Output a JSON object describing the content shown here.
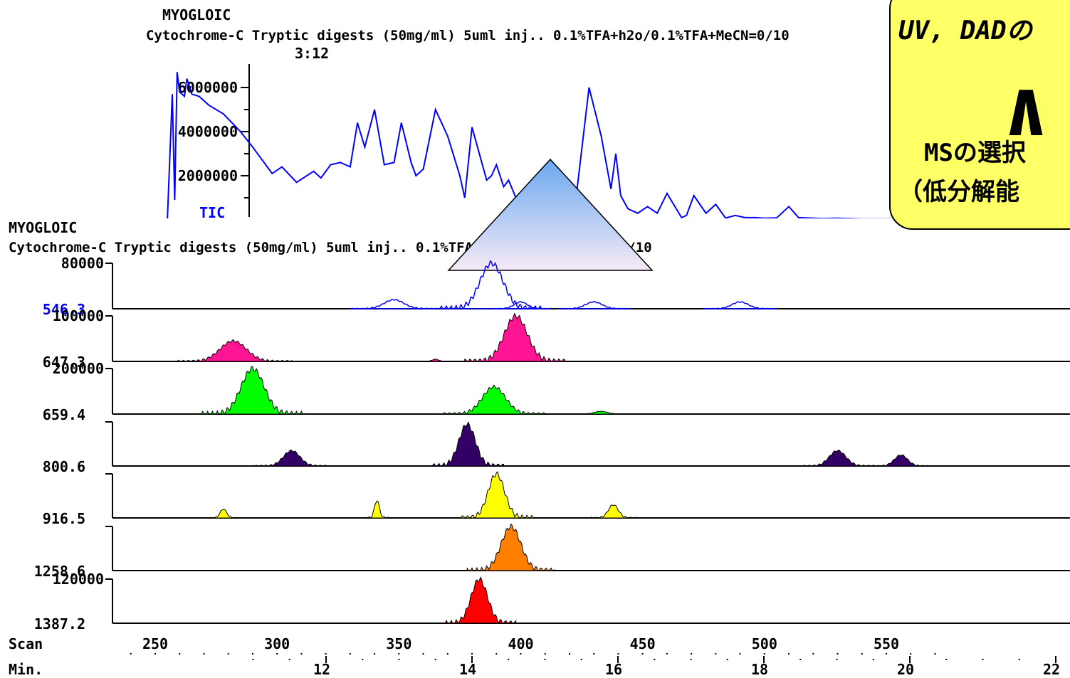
{
  "top_panel": {
    "label": "MYOGLOIC",
    "subtitle": "Cytochrome-C Tryptic digests (50mg/ml) 5uml inj.. 0.1%TFA+h2o/0.1%TFA+MeCN=0/10",
    "peak_annotation": "3:12",
    "trace_label": "TIC"
  },
  "bottom_panel": {
    "label": "MYOGLOIC",
    "subtitle": "Cytochrome-C Tryptic digests (50mg/ml) 5uml inj.. 0.1%TFA+h2o/0.1%TFA+MeCN=0/10"
  },
  "callout": {
    "line1": "UV, DADの",
    "symbol": "∧",
    "line2": "MSの選択",
    "line3": "（低分解能"
  },
  "axis": {
    "scan_label": "Scan",
    "min_label": "Min.",
    "scan_ticks": [
      "250",
      "300",
      "350",
      "400",
      "450",
      "500",
      "550"
    ],
    "min_ticks": [
      "12",
      "14",
      "16",
      "18",
      "20",
      "22"
    ]
  },
  "chart_data": [
    {
      "type": "line",
      "title": "MYOGLOIC",
      "series": [
        {
          "name": "TIC",
          "color": "#0000ff",
          "x": [
            240,
            255,
            257,
            258,
            259,
            260,
            262,
            263,
            265,
            268,
            272,
            278,
            285,
            290,
            298,
            302,
            308,
            315,
            318,
            322,
            326,
            330,
            333,
            336,
            340,
            344,
            348,
            351,
            355,
            357,
            360,
            365,
            370,
            375,
            377,
            380,
            386,
            388,
            390,
            393,
            395,
            398,
            400,
            404,
            408,
            412,
            418,
            422,
            428,
            433,
            437,
            439,
            441,
            444,
            448,
            452,
            456,
            460,
            466,
            468,
            471,
            476,
            480,
            484,
            488,
            492,
            496,
            500,
            505,
            510,
            514,
            518,
            524,
            530,
            540,
            548,
            552,
            556,
            565,
            580
          ],
          "y": [
            0,
            0,
            5700000,
            900000,
            6700000,
            5800000,
            5600000,
            6400000,
            5700000,
            5600000,
            5200000,
            4800000,
            4000000,
            3300000,
            2100000,
            2400000,
            1700000,
            2200000,
            1900000,
            2500000,
            2600000,
            2400000,
            4400000,
            3300000,
            5000000,
            2500000,
            2600000,
            4400000,
            2600000,
            2000000,
            2300000,
            5000000,
            3800000,
            2000000,
            1000000,
            4200000,
            1800000,
            2000000,
            2500000,
            1500000,
            1800000,
            1000000,
            800000,
            900000,
            1500000,
            300000,
            500000,
            350000,
            6000000,
            3800000,
            1400000,
            3000000,
            1100000,
            500000,
            300000,
            600000,
            300000,
            1200000,
            100000,
            200000,
            1100000,
            300000,
            700000,
            80000,
            200000,
            100000,
            100000,
            70000,
            90000,
            600000,
            100000,
            80000,
            60000,
            70000,
            40000,
            40000,
            40000,
            40000,
            40000,
            40000
          ]
        }
      ],
      "yticks": [
        "6000000",
        "4000000",
        "2000000"
      ],
      "ylim": [
        0,
        7000000
      ]
    },
    {
      "type": "area",
      "x_axis": {
        "label": "Scan",
        "ticks": [
          250,
          300,
          350,
          400,
          450,
          500,
          550
        ]
      },
      "x2_axis": {
        "label": "Min.",
        "ticks": [
          12,
          14,
          16,
          18,
          20,
          22
        ]
      },
      "traces": [
        {
          "mz": "546.3",
          "scale": "80000",
          "color": "#0000ff",
          "fill": false,
          "peaks": [
            [
              348,
              0.2,
              6
            ],
            [
              388,
              1.0,
              7
            ],
            [
              400,
              0.15,
              4
            ],
            [
              430,
              0.15,
              5
            ],
            [
              490,
              0.15,
              5
            ]
          ]
        },
        {
          "mz": "647.3",
          "scale": "100000",
          "color": "#ff1493",
          "fill": true,
          "peaks": [
            [
              282,
              0.45,
              8
            ],
            [
              398,
              1.0,
              7
            ],
            [
              365,
              0.05,
              2
            ]
          ]
        },
        {
          "mz": "659.4",
          "scale": "200000",
          "color": "#00ff00",
          "fill": true,
          "peaks": [
            [
              290,
              1.0,
              7
            ],
            [
              389,
              0.6,
              7
            ],
            [
              433,
              0.06,
              4
            ]
          ]
        },
        {
          "mz": "800.6",
          "scale": "",
          "color": "#330066",
          "fill": true,
          "peaks": [
            [
              306,
              0.35,
              5
            ],
            [
              378,
              0.95,
              5
            ],
            [
              530,
              0.35,
              5
            ],
            [
              556,
              0.25,
              4
            ]
          ]
        },
        {
          "mz": "916.5",
          "scale": "",
          "color": "#ffff00",
          "fill": true,
          "peaks": [
            [
              390,
              1.0,
              5
            ],
            [
              341,
              0.4,
              1.5
            ],
            [
              438,
              0.3,
              3
            ],
            [
              278,
              0.2,
              2
            ]
          ]
        },
        {
          "mz": "1258.6",
          "scale": "",
          "color": "#ff8000",
          "fill": true,
          "peaks": [
            [
              396,
              1.0,
              6
            ]
          ]
        },
        {
          "mz": "1387.2",
          "scale": "120000",
          "color": "#ff0000",
          "fill": true,
          "peaks": [
            [
              383,
              1.0,
              5
            ]
          ]
        }
      ]
    }
  ]
}
